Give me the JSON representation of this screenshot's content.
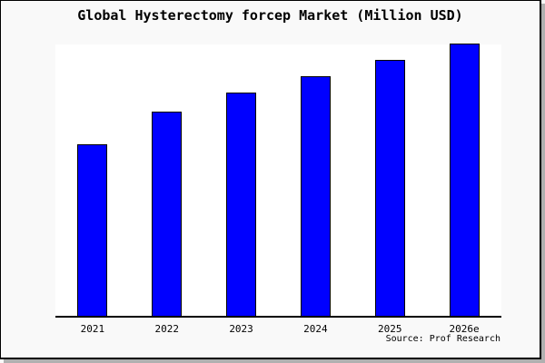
{
  "colors": {
    "bar": "#0000ff",
    "bar_border": "#000000",
    "background": "#f9f9f9",
    "plot_background": "#ffffff",
    "axis": "#000000",
    "frame_border": "#000000",
    "shadow": "#b0b0b0"
  },
  "chart_data": {
    "type": "bar",
    "title": "Global Hysterectomy forcep Market (Million USD)",
    "categories": [
      "2021",
      "2022",
      "2023",
      "2024",
      "2025",
      "2026e"
    ],
    "values": [
      63,
      75,
      82,
      88,
      94,
      100
    ],
    "values_note": "No y-axis scale shown in image; values are relative bar heights with 2026e = 100",
    "xlabel": "",
    "ylabel": "",
    "ylim": [
      0,
      101
    ],
    "grid": false,
    "legend": false,
    "source": "Source: Prof Research"
  }
}
